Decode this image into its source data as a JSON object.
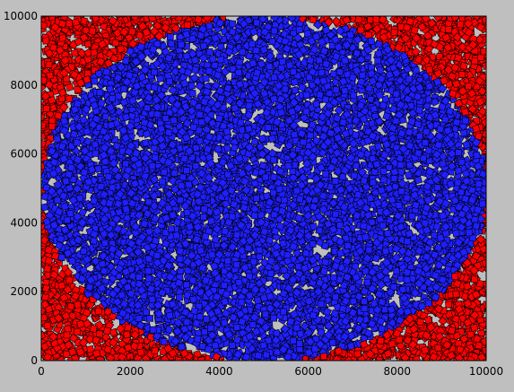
{
  "chart_data": {
    "type": "scatter",
    "title": "",
    "xlabel": "",
    "ylabel": "",
    "xlim": [
      0,
      10000
    ],
    "ylim": [
      0,
      10000
    ],
    "grid": false,
    "legend": "none",
    "marker": "square",
    "point_count_approx": 10000,
    "xticks": [
      0,
      2000,
      4000,
      6000,
      8000,
      10000
    ],
    "yticks": [
      0,
      2000,
      4000,
      6000,
      8000,
      10000
    ],
    "xtick_labels": [
      "0",
      "2000",
      "4000",
      "6000",
      "8000",
      "10000"
    ],
    "ytick_labels": [
      "0",
      "2000",
      "4000",
      "6000",
      "8000",
      "10000"
    ],
    "series": [
      {
        "region": "outside circle centered (5000,5000) radius 5000",
        "color": "#ff0000",
        "edge_color": "#000000"
      },
      {
        "region": "inside circle centered (5000,5000) radius 5000",
        "color": "#1f1fff",
        "edge_color": "#000000"
      }
    ]
  }
}
